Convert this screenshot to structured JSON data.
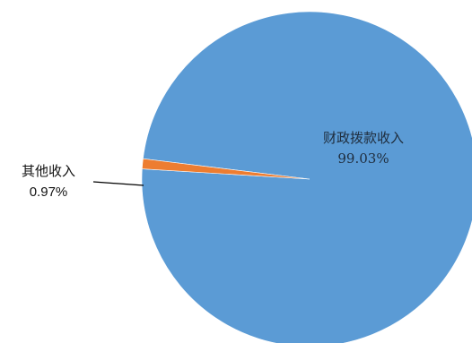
{
  "chart_data": {
    "type": "pie",
    "slices": [
      {
        "name": "财政拨款收入",
        "value": 99.03,
        "label": "99.03%",
        "color": "#5B9BD5"
      },
      {
        "name": "其他收入",
        "value": 0.97,
        "label": "0.97%",
        "color": "#ED7D31"
      }
    ],
    "start_angle_deg": 176.5,
    "direction": "counterclockwise"
  }
}
